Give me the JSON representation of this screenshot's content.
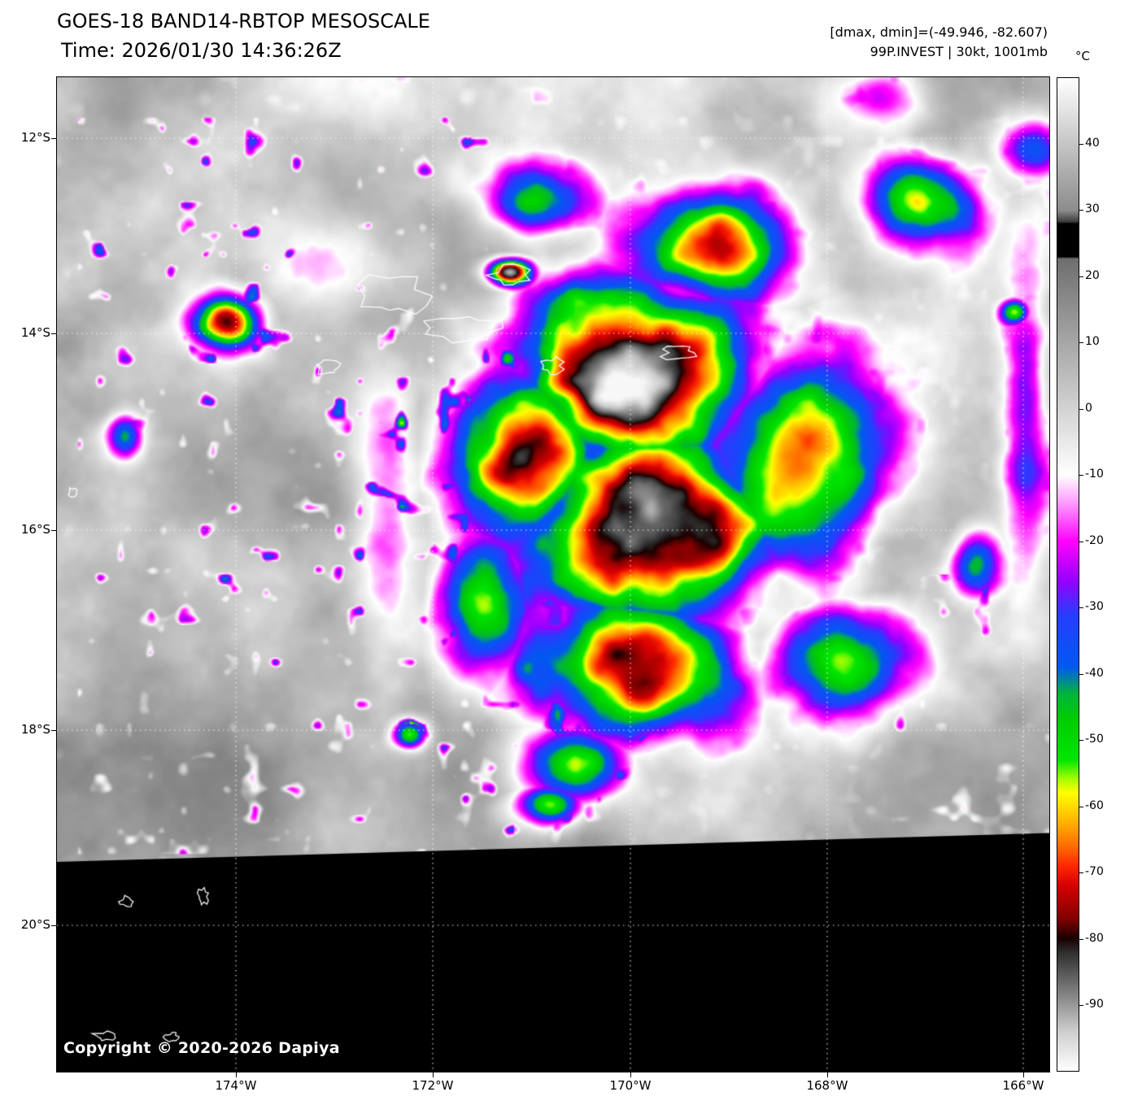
{
  "header": {
    "title": "GOES-18 BAND14-RBTOP MESOSCALE",
    "time": "Time: 2026/01/30 14:36:26Z",
    "dmax_dmin": "[dmax, dmin]=(-49.946, -82.607)",
    "storm_info": "99P.INVEST | 30kt, 1001mb"
  },
  "colorbar": {
    "unit": "°C",
    "range": [
      50,
      -100
    ],
    "ticks": [
      40,
      30,
      20,
      10,
      0,
      -10,
      -20,
      -30,
      -40,
      -50,
      -60,
      -70,
      -80,
      -90
    ],
    "stops": [
      [
        50,
        255,
        255,
        255
      ],
      [
        30,
        140,
        140,
        140
      ],
      [
        28.3,
        60,
        60,
        60
      ],
      [
        28,
        0,
        0,
        0
      ],
      [
        23,
        0,
        0,
        0
      ],
      [
        22.7,
        110,
        110,
        110
      ],
      [
        -10,
        255,
        255,
        255
      ],
      [
        -14,
        255,
        160,
        255
      ],
      [
        -20,
        255,
        0,
        255
      ],
      [
        -26,
        150,
        0,
        255
      ],
      [
        -31,
        40,
        60,
        255
      ],
      [
        -39,
        0,
        90,
        240
      ],
      [
        -43,
        0,
        180,
        60
      ],
      [
        -47,
        0,
        205,
        0
      ],
      [
        -53,
        0,
        230,
        0
      ],
      [
        -56,
        170,
        255,
        0
      ],
      [
        -58,
        255,
        255,
        0
      ],
      [
        -62,
        255,
        185,
        0
      ],
      [
        -66,
        255,
        110,
        0
      ],
      [
        -69,
        255,
        40,
        0
      ],
      [
        -72,
        215,
        0,
        0
      ],
      [
        -77,
        130,
        0,
        0
      ],
      [
        -80,
        25,
        0,
        0
      ],
      [
        -82,
        45,
        45,
        45
      ],
      [
        -88,
        125,
        125,
        125
      ],
      [
        -94,
        205,
        205,
        205
      ],
      [
        -100,
        255,
        255,
        255
      ]
    ]
  },
  "map": {
    "copyright": "Copyright © 2020-2026 Dapiya",
    "lat_labels": [
      {
        "text": "12°S",
        "v": 0.0613
      },
      {
        "text": "14°S",
        "v": 0.2576
      },
      {
        "text": "16°S",
        "v": 0.4554
      },
      {
        "text": "18°S",
        "v": 0.6566
      },
      {
        "text": "20°S",
        "v": 0.8528
      }
    ],
    "lon_labels": [
      {
        "text": "174°W",
        "u": 0.1803
      },
      {
        "text": "172°W",
        "u": 0.3787
      },
      {
        "text": "170°W",
        "u": 0.5779
      },
      {
        "text": "168°W",
        "u": 0.7762
      },
      {
        "text": "166°W",
        "u": 0.9738
      }
    ]
  },
  "scene": {
    "seed": 7,
    "background": {
      "t0": 20,
      "amp": 32,
      "gamma": 1.25,
      "vbias": 7,
      "ubias": -3,
      "scale": 7
    },
    "storms": [
      [
        0.6,
        0.295,
        0.15,
        0.12,
        100
      ],
      [
        0.61,
        0.455,
        0.16,
        0.13,
        102
      ],
      [
        0.585,
        0.595,
        0.13,
        0.1,
        96
      ],
      [
        0.47,
        0.38,
        0.095,
        0.105,
        80
      ],
      [
        0.745,
        0.39,
        0.13,
        0.15,
        82
      ],
      [
        0.66,
        0.17,
        0.12,
        0.08,
        80
      ],
      [
        0.52,
        0.69,
        0.08,
        0.055,
        66
      ],
      [
        0.43,
        0.53,
        0.055,
        0.095,
        52
      ],
      [
        0.79,
        0.59,
        0.1,
        0.08,
        62
      ],
      [
        0.48,
        0.125,
        0.08,
        0.048,
        56
      ],
      [
        0.87,
        0.12,
        0.075,
        0.06,
        50
      ],
      [
        0.17,
        0.245,
        0.048,
        0.038,
        76
      ],
      [
        0.068,
        0.36,
        0.026,
        0.032,
        52
      ],
      [
        0.355,
        0.66,
        0.024,
        0.02,
        64
      ],
      [
        0.495,
        0.73,
        0.048,
        0.03,
        64
      ],
      [
        0.455,
        0.195,
        0.03,
        0.018,
        96
      ],
      [
        0.975,
        0.33,
        0.032,
        0.2,
        34
      ],
      [
        0.83,
        0.02,
        0.07,
        0.045,
        36
      ],
      [
        0.985,
        0.07,
        0.05,
        0.045,
        36
      ],
      [
        0.965,
        0.235,
        0.02,
        0.018,
        60
      ],
      [
        0.925,
        0.49,
        0.035,
        0.045,
        45
      ],
      [
        0.33,
        0.43,
        0.045,
        0.2,
        26
      ],
      [
        0.27,
        0.18,
        0.1,
        0.08,
        22
      ]
    ],
    "speckle_regions": [
      {
        "u0": 0.02,
        "u1": 0.46,
        "v0": 0.04,
        "v1": 0.78,
        "w": 1.0
      },
      {
        "u0": 0.84,
        "u1": 1.0,
        "v0": 0.5,
        "v1": 0.85,
        "w": 0.7
      },
      {
        "u0": 0.46,
        "u1": 0.6,
        "v0": 0.6,
        "v1": 0.78,
        "w": 0.6
      }
    ],
    "nodata_wedge": {
      "left_v": 0.789,
      "right_v": 0.76
    },
    "islands": [
      [
        0.34,
        0.22,
        0.03,
        0.02,
        11
      ],
      [
        0.408,
        0.252,
        0.033,
        0.012,
        22
      ],
      [
        0.272,
        0.292,
        0.012,
        0.007,
        33
      ],
      [
        0.5,
        0.29,
        0.01,
        0.007,
        44
      ],
      [
        0.627,
        0.277,
        0.016,
        0.007,
        55
      ],
      [
        0.455,
        0.199,
        0.018,
        0.009,
        66
      ],
      [
        0.016,
        0.417,
        0.004,
        0.004,
        77
      ],
      [
        0.07,
        0.829,
        0.006,
        0.005,
        88
      ],
      [
        0.147,
        0.824,
        0.005,
        0.007,
        99
      ],
      [
        0.048,
        0.964,
        0.01,
        0.004,
        111
      ],
      [
        0.115,
        0.965,
        0.006,
        0.004,
        122
      ]
    ]
  }
}
